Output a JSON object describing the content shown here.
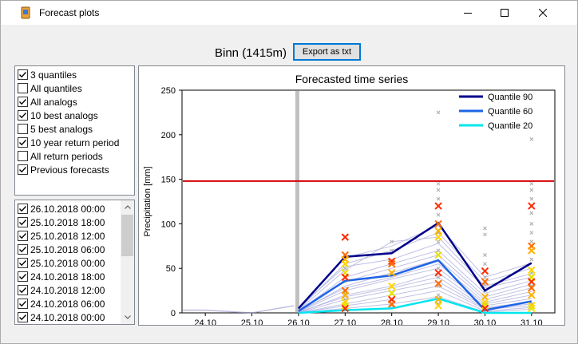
{
  "window": {
    "title": "Forecast plots"
  },
  "header": {
    "station": "Binn (1415m)",
    "export_label": "Export as txt"
  },
  "options": [
    {
      "label": "3 quantiles",
      "checked": true
    },
    {
      "label": "All quantiles",
      "checked": false
    },
    {
      "label": "All analogs",
      "checked": true
    },
    {
      "label": "10 best analogs",
      "checked": true
    },
    {
      "label": "5 best analogs",
      "checked": false
    },
    {
      "label": "10 year return period",
      "checked": true
    },
    {
      "label": "All return periods",
      "checked": false
    },
    {
      "label": "Previous forecasts",
      "checked": true
    }
  ],
  "dates": [
    {
      "label": "26.10.2018 00:00",
      "checked": true
    },
    {
      "label": "25.10.2018 18:00",
      "checked": true
    },
    {
      "label": "25.10.2018 12:00",
      "checked": true
    },
    {
      "label": "25.10.2018 06:00",
      "checked": true
    },
    {
      "label": "25.10.2018 00:00",
      "checked": true
    },
    {
      "label": "24.10.2018 18:00",
      "checked": true
    },
    {
      "label": "24.10.2018 12:00",
      "checked": true
    },
    {
      "label": "24.10.2018 06:00",
      "checked": true
    },
    {
      "label": "24.10.2018 00:00",
      "checked": true
    }
  ],
  "chart_data": {
    "type": "line",
    "title": "Forecasted time series",
    "xlabel": "",
    "ylabel": "Precipitation [mm]",
    "ylim": [
      0,
      250
    ],
    "yticks": [
      0,
      50,
      100,
      150,
      200,
      250
    ],
    "categories": [
      "24.10",
      "25.10",
      "26.10",
      "27.10",
      "28.10",
      "29.10",
      "30.10",
      "31.10"
    ],
    "legend_position": "top-right",
    "return_period_10y": 148,
    "forecast_start_marker": "26.10",
    "series": [
      {
        "name": "Quantile 90",
        "color": "#00008b",
        "x": [
          "26.10",
          "27.10",
          "28.10",
          "29.10",
          "30.10",
          "31.10"
        ],
        "values": [
          5,
          63,
          67,
          101,
          25,
          56
        ]
      },
      {
        "name": "Quantile 60",
        "color": "#1e64e6",
        "x": [
          "26.10",
          "27.10",
          "28.10",
          "29.10",
          "30.10",
          "31.10"
        ],
        "values": [
          2,
          36,
          42,
          59,
          3,
          13
        ]
      },
      {
        "name": "Quantile 20",
        "color": "#00e5ee",
        "x": [
          "26.10",
          "27.10",
          "28.10",
          "29.10",
          "30.10",
          "31.10"
        ],
        "values": [
          0,
          3,
          5,
          16,
          0,
          0
        ]
      }
    ],
    "analog_lines": [
      [
        5,
        62,
        75,
        98,
        40,
        56
      ],
      [
        4,
        55,
        70,
        90,
        35,
        50
      ],
      [
        3,
        48,
        80,
        85,
        30,
        44
      ],
      [
        6,
        52,
        60,
        78,
        28,
        40
      ],
      [
        2,
        40,
        55,
        70,
        22,
        36
      ],
      [
        3,
        35,
        50,
        65,
        18,
        32
      ],
      [
        1,
        30,
        45,
        60,
        15,
        28
      ],
      [
        2,
        28,
        40,
        55,
        12,
        24
      ],
      [
        1,
        25,
        38,
        50,
        10,
        20
      ],
      [
        0,
        20,
        30,
        45,
        8,
        16
      ],
      [
        1,
        18,
        28,
        40,
        6,
        12
      ],
      [
        0,
        15,
        25,
        35,
        5,
        10
      ],
      [
        0,
        10,
        20,
        30,
        4,
        8
      ],
      [
        0,
        8,
        15,
        25,
        2,
        6
      ],
      [
        0,
        5,
        10,
        18,
        1,
        4
      ]
    ],
    "previous_forecasts": [
      {
        "x": "27.10",
        "values": [
          85,
          65,
          60,
          55,
          45,
          40,
          25,
          20,
          12,
          8,
          5
        ]
      },
      {
        "x": "28.10",
        "values": [
          58,
          55,
          45,
          30,
          22,
          15,
          10
        ]
      },
      {
        "x": "29.10",
        "values": [
          120,
          100,
          92,
          85,
          65,
          45,
          33,
          15,
          8
        ]
      },
      {
        "x": "30.10",
        "values": [
          47,
          35,
          18,
          12,
          8,
          5
        ]
      },
      {
        "x": "31.10",
        "values": [
          120,
          75,
          70,
          48,
          40,
          35,
          28,
          20,
          8,
          5
        ]
      }
    ],
    "analog_points": [
      {
        "x": "27.10",
        "values": [
          50,
          35,
          22,
          15,
          5
        ]
      },
      {
        "x": "28.10",
        "values": [
          80,
          70,
          30,
          15,
          8
        ]
      },
      {
        "x": "29.10",
        "values": [
          225,
          145,
          138,
          128,
          110,
          100,
          90,
          80,
          70,
          50,
          40,
          30,
          20,
          10
        ]
      },
      {
        "x": "30.10",
        "values": [
          95,
          88,
          65,
          55,
          40,
          32,
          25,
          18,
          10
        ]
      },
      {
        "x": "31.10",
        "values": [
          195,
          145,
          138,
          128,
          120,
          112,
          100,
          90,
          80,
          60,
          45,
          30,
          20,
          10
        ]
      }
    ]
  }
}
